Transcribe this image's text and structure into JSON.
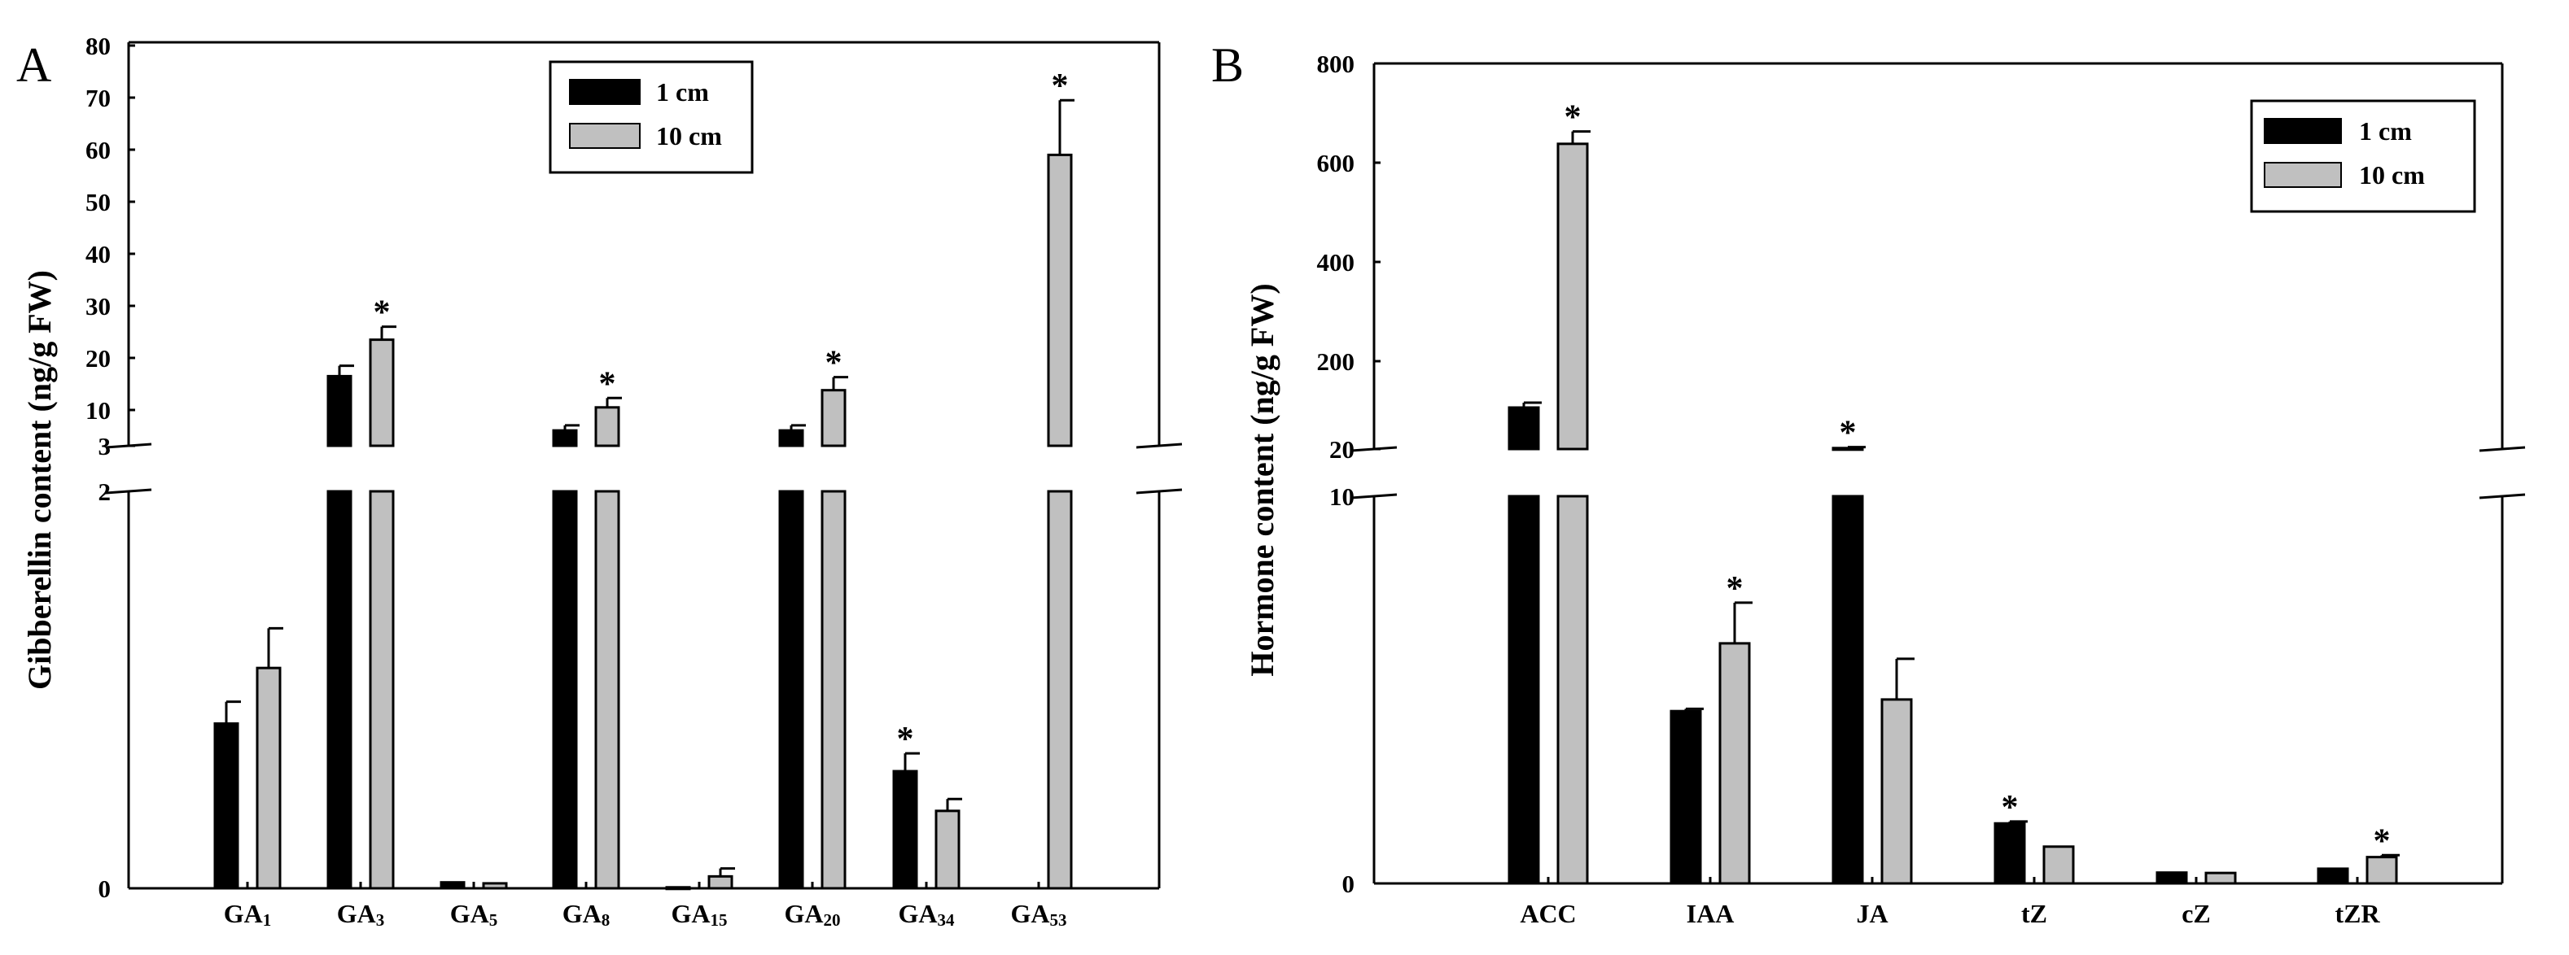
{
  "colors": {
    "series_1cm": "#000000",
    "series_10cm": "#c0c0c0",
    "axis": "#000000"
  },
  "chart_data": [
    {
      "type": "bar",
      "panel_label": "A",
      "ylabel": "Gibberellin content (ng/g FW)",
      "xlabel": "",
      "broken_axis": true,
      "ylim_lower": [
        0,
        2
      ],
      "ylim_upper": [
        3,
        80
      ],
      "yticks_lower": [
        "0",
        "2"
      ],
      "yticks_upper": [
        "3",
        "10",
        "20",
        "30",
        "40",
        "50",
        "60",
        "70",
        "80"
      ],
      "categories": [
        {
          "base": "GA",
          "sub": "1"
        },
        {
          "base": "GA",
          "sub": "3"
        },
        {
          "base": "GA",
          "sub": "5"
        },
        {
          "base": "GA",
          "sub": "8"
        },
        {
          "base": "GA",
          "sub": "15"
        },
        {
          "base": "GA",
          "sub": "20"
        },
        {
          "base": "GA",
          "sub": "34"
        },
        {
          "base": "GA",
          "sub": "53"
        }
      ],
      "legend_position": "top-center",
      "series": [
        {
          "name": "1 cm",
          "values": [
            0.83,
            16.5,
            0.03,
            6.0,
            0.005,
            6.0,
            0.59,
            null
          ],
          "errors": [
            0.11,
            2.0,
            0.0,
            1.0,
            0.0,
            1.0,
            0.09,
            null
          ],
          "significant": [
            false,
            false,
            false,
            false,
            false,
            false,
            true,
            false
          ]
        },
        {
          "name": "10 cm",
          "values": [
            1.11,
            23.5,
            0.025,
            10.5,
            0.06,
            13.8,
            0.39,
            59.0
          ],
          "errors": [
            0.2,
            2.5,
            0.0,
            1.8,
            0.04,
            2.5,
            0.06,
            10.5
          ],
          "significant": [
            false,
            true,
            false,
            true,
            false,
            true,
            false,
            true
          ]
        }
      ],
      "annotation": "*"
    },
    {
      "type": "bar",
      "panel_label": "B",
      "ylabel": "Hormone content (ng/g FW)",
      "xlabel": "",
      "broken_axis": true,
      "ylim_lower": [
        0,
        10
      ],
      "ylim_upper": [
        20,
        800
      ],
      "yticks_lower": [
        "0",
        "10"
      ],
      "yticks_upper": [
        "20",
        "200",
        "400",
        "600",
        "800"
      ],
      "categories": [
        {
          "base": "ACC",
          "sub": ""
        },
        {
          "base": "IAA",
          "sub": ""
        },
        {
          "base": "JA",
          "sub": ""
        },
        {
          "base": "tZ",
          "sub": ""
        },
        {
          "base": "cZ",
          "sub": ""
        },
        {
          "base": "tZR",
          "sub": ""
        }
      ],
      "legend_position": "top-right",
      "series": [
        {
          "name": "1 cm",
          "values": [
            105,
            4.45,
            22,
            1.55,
            0.28,
            0.38
          ],
          "errors": [
            10,
            0.06,
            2,
            0.05,
            0.0,
            0.0
          ],
          "significant": [
            false,
            false,
            true,
            true,
            false,
            false
          ]
        },
        {
          "name": "10 cm",
          "values": [
            638,
            6.2,
            4.75,
            0.95,
            0.27,
            0.68
          ],
          "errors": [
            25,
            1.05,
            1.05,
            0.0,
            0.0,
            0.05
          ],
          "significant": [
            true,
            true,
            false,
            false,
            false,
            true
          ]
        }
      ],
      "annotation": "*"
    }
  ]
}
